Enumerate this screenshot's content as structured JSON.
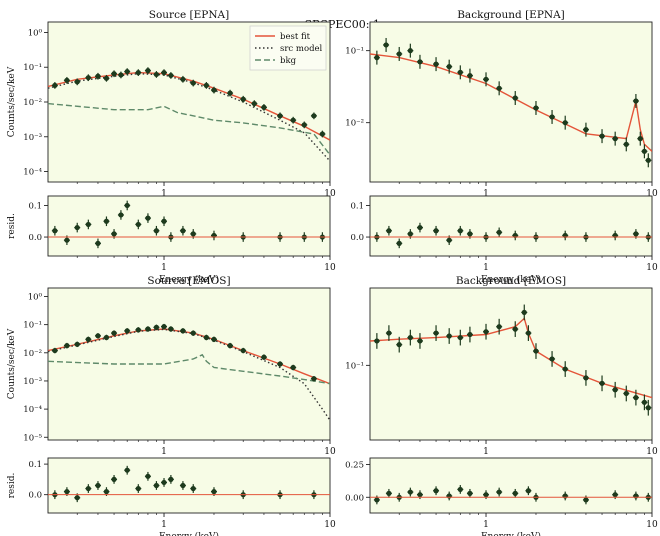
{
  "figure": {
    "suptitle": "n_SRSPEC00: 1"
  },
  "chart_data": [
    {
      "id": "src-epna",
      "type": "line",
      "title": "Source [EPNA]",
      "xlabel": "",
      "ylabel": "Counts/sec/keV",
      "xscale": "log",
      "yscale": "log",
      "xlim": [
        0.2,
        10
      ],
      "ylim": [
        5e-05,
        2
      ],
      "xticks": [
        1,
        10
      ],
      "xticklabels": [
        "1",
        "10"
      ],
      "yticks": [
        1,
        0.1,
        0.01,
        0.001,
        0.0001
      ],
      "yticklabels": [
        "10⁰",
        "10⁻¹",
        "10⁻²",
        "10⁻³",
        "10⁻⁴"
      ],
      "legend": {
        "placement": "top-right",
        "entries": [
          "best fit",
          "src model",
          "bkg"
        ]
      },
      "series": [
        {
          "name": "best fit",
          "style": "solid",
          "color": "#e4553a",
          "x": [
            0.2,
            0.3,
            0.5,
            0.7,
            1.0,
            1.5,
            2.0,
            3.0,
            5.0,
            7.0,
            10.0
          ],
          "y": [
            0.028,
            0.045,
            0.06,
            0.07,
            0.065,
            0.04,
            0.025,
            0.012,
            0.004,
            0.002,
            0.0008
          ]
        },
        {
          "name": "src model",
          "style": "dotted",
          "color": "#333333",
          "x": [
            0.2,
            0.3,
            0.5,
            0.7,
            1.0,
            1.5,
            2.0,
            3.0,
            5.0,
            7.0,
            10.0
          ],
          "y": [
            0.025,
            0.04,
            0.055,
            0.065,
            0.06,
            0.036,
            0.022,
            0.01,
            0.003,
            0.0013,
            0.0002
          ]
        },
        {
          "name": "bkg",
          "style": "dashed",
          "color": "#5f8a6a",
          "x": [
            0.2,
            0.5,
            0.8,
            1.0,
            1.2,
            2.0,
            3.0,
            5.0,
            8.0,
            10.0
          ],
          "y": [
            0.009,
            0.006,
            0.006,
            0.0075,
            0.005,
            0.003,
            0.0025,
            0.0018,
            0.0012,
            0.0003
          ]
        },
        {
          "name": "data",
          "style": "points",
          "color": "#1d3a1d",
          "x": [
            0.22,
            0.26,
            0.3,
            0.35,
            0.4,
            0.45,
            0.5,
            0.55,
            0.6,
            0.7,
            0.8,
            0.9,
            1.0,
            1.1,
            1.3,
            1.5,
            1.8,
            2.0,
            2.5,
            3.0,
            3.5,
            4.0,
            5.0,
            6.0,
            7.0,
            8.0,
            9.0
          ],
          "y": [
            0.03,
            0.042,
            0.038,
            0.05,
            0.055,
            0.048,
            0.065,
            0.06,
            0.075,
            0.07,
            0.08,
            0.062,
            0.07,
            0.058,
            0.045,
            0.035,
            0.03,
            0.022,
            0.018,
            0.012,
            0.009,
            0.007,
            0.004,
            0.003,
            0.0022,
            0.004,
            0.0012
          ]
        }
      ]
    },
    {
      "id": "bkg-epna",
      "type": "line",
      "title": "Background [EPNA]",
      "xlabel": "",
      "ylabel": "",
      "xscale": "log",
      "yscale": "log",
      "xlim": [
        0.2,
        10
      ],
      "ylim": [
        0.0015,
        0.25
      ],
      "xticks": [
        1,
        10
      ],
      "xticklabels": [
        "1",
        "10"
      ],
      "yticks": [
        0.1,
        0.01
      ],
      "yticklabels": [
        "10⁻¹",
        "10⁻²"
      ],
      "series": [
        {
          "name": "model",
          "style": "solid",
          "color": "#e4553a",
          "x": [
            0.2,
            0.3,
            0.5,
            1.0,
            2.0,
            4.0,
            7.0,
            8.0,
            8.5,
            9.0,
            10.0
          ],
          "y": [
            0.09,
            0.08,
            0.06,
            0.035,
            0.015,
            0.007,
            0.006,
            0.02,
            0.008,
            0.005,
            0.004
          ]
        },
        {
          "name": "data",
          "style": "points",
          "color": "#1d3a1d",
          "x": [
            0.22,
            0.25,
            0.3,
            0.35,
            0.4,
            0.5,
            0.6,
            0.7,
            0.8,
            1.0,
            1.2,
            1.5,
            2.0,
            2.5,
            3.0,
            4.0,
            5.0,
            6.0,
            7.0,
            8.0,
            8.5,
            9.0,
            9.5
          ],
          "y": [
            0.08,
            0.12,
            0.09,
            0.1,
            0.07,
            0.065,
            0.06,
            0.05,
            0.045,
            0.04,
            0.03,
            0.022,
            0.016,
            0.012,
            0.01,
            0.008,
            0.0065,
            0.006,
            0.005,
            0.02,
            0.006,
            0.004,
            0.003
          ]
        }
      ]
    },
    {
      "id": "resid-src-epna",
      "type": "scatter",
      "title": "",
      "xlabel": "Energy (keV)",
      "ylabel": "resid.",
      "xscale": "log",
      "yscale": "linear",
      "xlim": [
        0.2,
        10
      ],
      "ylim": [
        -0.06,
        0.13
      ],
      "xticks": [
        1,
        10
      ],
      "xticklabels": [
        "1",
        "10"
      ],
      "yticks": [
        0.1,
        0.0
      ],
      "yticklabels": [
        "0.1",
        "0.0"
      ],
      "series": [
        {
          "name": "residuals",
          "style": "points",
          "color": "#1d3a1d",
          "x": [
            0.22,
            0.26,
            0.3,
            0.35,
            0.4,
            0.45,
            0.5,
            0.55,
            0.6,
            0.7,
            0.8,
            0.9,
            1.0,
            1.1,
            1.3,
            1.5,
            2.0,
            3.0,
            5.0,
            7.0,
            9.0
          ],
          "y": [
            0.02,
            -0.01,
            0.03,
            0.04,
            -0.02,
            0.05,
            0.01,
            0.07,
            0.1,
            0.04,
            0.06,
            0.02,
            0.05,
            0.0,
            0.02,
            0.01,
            0.005,
            0.0,
            0.0,
            0.0,
            0.0
          ]
        }
      ]
    },
    {
      "id": "resid-bkg-epna",
      "type": "scatter",
      "title": "",
      "xlabel": "Energy (keV)",
      "ylabel": "",
      "xscale": "log",
      "yscale": "linear",
      "xlim": [
        0.2,
        10
      ],
      "ylim": [
        -0.06,
        0.13
      ],
      "xticks": [
        1,
        10
      ],
      "xticklabels": [
        "1",
        "10"
      ],
      "yticks": [
        0.1,
        0.0
      ],
      "yticklabels": [
        "0.1",
        "0.0"
      ],
      "series": [
        {
          "name": "residuals",
          "style": "points",
          "color": "#1d3a1d",
          "x": [
            0.22,
            0.26,
            0.3,
            0.35,
            0.4,
            0.5,
            0.6,
            0.7,
            0.8,
            1.0,
            1.2,
            1.5,
            2.0,
            3.0,
            4.0,
            6.0,
            8.0,
            9.5
          ],
          "y": [
            0.0,
            0.02,
            -0.02,
            0.01,
            0.03,
            0.02,
            -0.01,
            0.02,
            0.01,
            0.0,
            0.015,
            0.005,
            0.0,
            0.005,
            0.0,
            0.005,
            0.01,
            0.0
          ]
        }
      ]
    },
    {
      "id": "src-emos",
      "type": "line",
      "title": "Source [EMOS]",
      "xlabel": "",
      "ylabel": "Counts/sec/keV",
      "xscale": "log",
      "yscale": "log",
      "xlim": [
        0.2,
        10
      ],
      "ylim": [
        8e-06,
        2
      ],
      "xticks": [
        1,
        10
      ],
      "xticklabels": [
        "1",
        "10"
      ],
      "yticks": [
        1,
        0.1,
        0.01,
        0.001,
        0.0001,
        1e-05
      ],
      "yticklabels": [
        "10⁰",
        "10⁻¹",
        "10⁻²",
        "10⁻³",
        "10⁻⁴",
        "10⁻⁵"
      ],
      "series": [
        {
          "name": "best fit",
          "style": "solid",
          "color": "#e4553a",
          "x": [
            0.2,
            0.3,
            0.5,
            0.7,
            1.0,
            1.5,
            2.0,
            3.0,
            5.0,
            7.0,
            10.0
          ],
          "y": [
            0.012,
            0.02,
            0.04,
            0.06,
            0.07,
            0.05,
            0.03,
            0.012,
            0.004,
            0.0018,
            0.0008
          ]
        },
        {
          "name": "src model",
          "style": "dotted",
          "color": "#333333",
          "x": [
            0.2,
            0.3,
            0.5,
            0.7,
            1.0,
            1.5,
            2.0,
            3.0,
            5.0,
            7.0,
            9.0,
            10.0
          ],
          "y": [
            0.011,
            0.019,
            0.038,
            0.058,
            0.068,
            0.048,
            0.028,
            0.011,
            0.003,
            0.0008,
            0.0001,
            4e-05
          ]
        },
        {
          "name": "bkg",
          "style": "dashed",
          "color": "#5f8a6a",
          "x": [
            0.2,
            0.5,
            1.0,
            1.5,
            1.7,
            1.8,
            2.0,
            3.0,
            5.0,
            8.0,
            10.0
          ],
          "y": [
            0.005,
            0.004,
            0.004,
            0.006,
            0.0085,
            0.005,
            0.003,
            0.0022,
            0.0015,
            0.001,
            0.0008
          ]
        },
        {
          "name": "data",
          "style": "points",
          "color": "#1d3a1d",
          "x": [
            0.22,
            0.26,
            0.3,
            0.35,
            0.4,
            0.45,
            0.5,
            0.6,
            0.7,
            0.8,
            0.9,
            1.0,
            1.1,
            1.3,
            1.5,
            1.8,
            2.0,
            2.5,
            3.0,
            4.0,
            5.0,
            6.0,
            8.0
          ],
          "y": [
            0.012,
            0.018,
            0.02,
            0.03,
            0.04,
            0.035,
            0.05,
            0.06,
            0.065,
            0.07,
            0.08,
            0.085,
            0.07,
            0.06,
            0.05,
            0.035,
            0.03,
            0.018,
            0.012,
            0.007,
            0.004,
            0.003,
            0.0012
          ]
        }
      ]
    },
    {
      "id": "bkg-emos",
      "type": "line",
      "title": "Background [EMOS]",
      "xlabel": "",
      "ylabel": "",
      "xscale": "log",
      "yscale": "log",
      "xlim": [
        0.2,
        10
      ],
      "ylim": [
        0.012,
        0.9
      ],
      "xticks": [
        1,
        10
      ],
      "xticklabels": [
        "1",
        "10"
      ],
      "yticks": [
        0.1
      ],
      "yticklabels": [
        "10⁻¹"
      ],
      "series": [
        {
          "name": "model",
          "style": "solid",
          "color": "#e4553a",
          "x": [
            0.2,
            0.3,
            0.5,
            1.0,
            1.5,
            1.7,
            1.8,
            2.0,
            3.0,
            5.0,
            10.0
          ],
          "y": [
            0.2,
            0.21,
            0.22,
            0.24,
            0.3,
            0.38,
            0.25,
            0.15,
            0.09,
            0.06,
            0.04
          ]
        },
        {
          "name": "data",
          "style": "points",
          "color": "#1d3a1d",
          "x": [
            0.22,
            0.26,
            0.3,
            0.35,
            0.4,
            0.5,
            0.6,
            0.7,
            0.8,
            1.0,
            1.2,
            1.5,
            1.7,
            1.8,
            2.0,
            2.5,
            3.0,
            4.0,
            5.0,
            6.0,
            7.0,
            8.0,
            9.0,
            9.5
          ],
          "y": [
            0.2,
            0.25,
            0.18,
            0.22,
            0.2,
            0.25,
            0.23,
            0.22,
            0.24,
            0.26,
            0.3,
            0.28,
            0.45,
            0.25,
            0.15,
            0.12,
            0.09,
            0.07,
            0.06,
            0.05,
            0.045,
            0.04,
            0.035,
            0.03
          ]
        }
      ]
    },
    {
      "id": "resid-src-emos",
      "type": "scatter",
      "title": "",
      "xlabel": "Energy (keV)",
      "ylabel": "resid.",
      "xscale": "log",
      "yscale": "linear",
      "xlim": [
        0.2,
        10
      ],
      "ylim": [
        -0.06,
        0.12
      ],
      "xticks": [
        1,
        10
      ],
      "xticklabels": [
        "1",
        "10"
      ],
      "yticks": [
        0.1,
        0.0
      ],
      "yticklabels": [
        "0.1",
        "0.0"
      ],
      "series": [
        {
          "name": "residuals",
          "style": "points",
          "color": "#1d3a1d",
          "x": [
            0.22,
            0.26,
            0.3,
            0.35,
            0.4,
            0.45,
            0.5,
            0.6,
            0.7,
            0.8,
            0.9,
            1.0,
            1.1,
            1.3,
            1.5,
            2.0,
            3.0,
            5.0,
            8.0
          ],
          "y": [
            0.0,
            0.01,
            -0.01,
            0.02,
            0.03,
            0.01,
            0.05,
            0.08,
            0.02,
            0.06,
            0.03,
            0.04,
            0.05,
            0.03,
            0.02,
            0.01,
            0.0,
            0.0,
            0.0
          ]
        }
      ]
    },
    {
      "id": "resid-bkg-emos",
      "type": "scatter",
      "title": "",
      "xlabel": "Energy (keV)",
      "ylabel": "",
      "xscale": "log",
      "yscale": "linear",
      "xlim": [
        0.2,
        10
      ],
      "ylim": [
        -0.12,
        0.3
      ],
      "xticks": [
        1,
        10
      ],
      "xticklabels": [
        "1",
        "10"
      ],
      "yticks": [
        0.25,
        0.0
      ],
      "yticklabels": [
        "0.25",
        "0.00"
      ],
      "series": [
        {
          "name": "residuals",
          "style": "points",
          "color": "#1d3a1d",
          "x": [
            0.22,
            0.26,
            0.3,
            0.35,
            0.4,
            0.5,
            0.6,
            0.7,
            0.8,
            1.0,
            1.2,
            1.5,
            1.8,
            2.0,
            3.0,
            4.0,
            6.0,
            8.0,
            9.5
          ],
          "y": [
            -0.02,
            0.03,
            0.0,
            0.04,
            0.02,
            0.05,
            0.01,
            0.06,
            0.03,
            0.02,
            0.04,
            0.03,
            0.05,
            0.0,
            0.01,
            -0.02,
            0.02,
            0.01,
            0.0
          ]
        }
      ]
    }
  ]
}
